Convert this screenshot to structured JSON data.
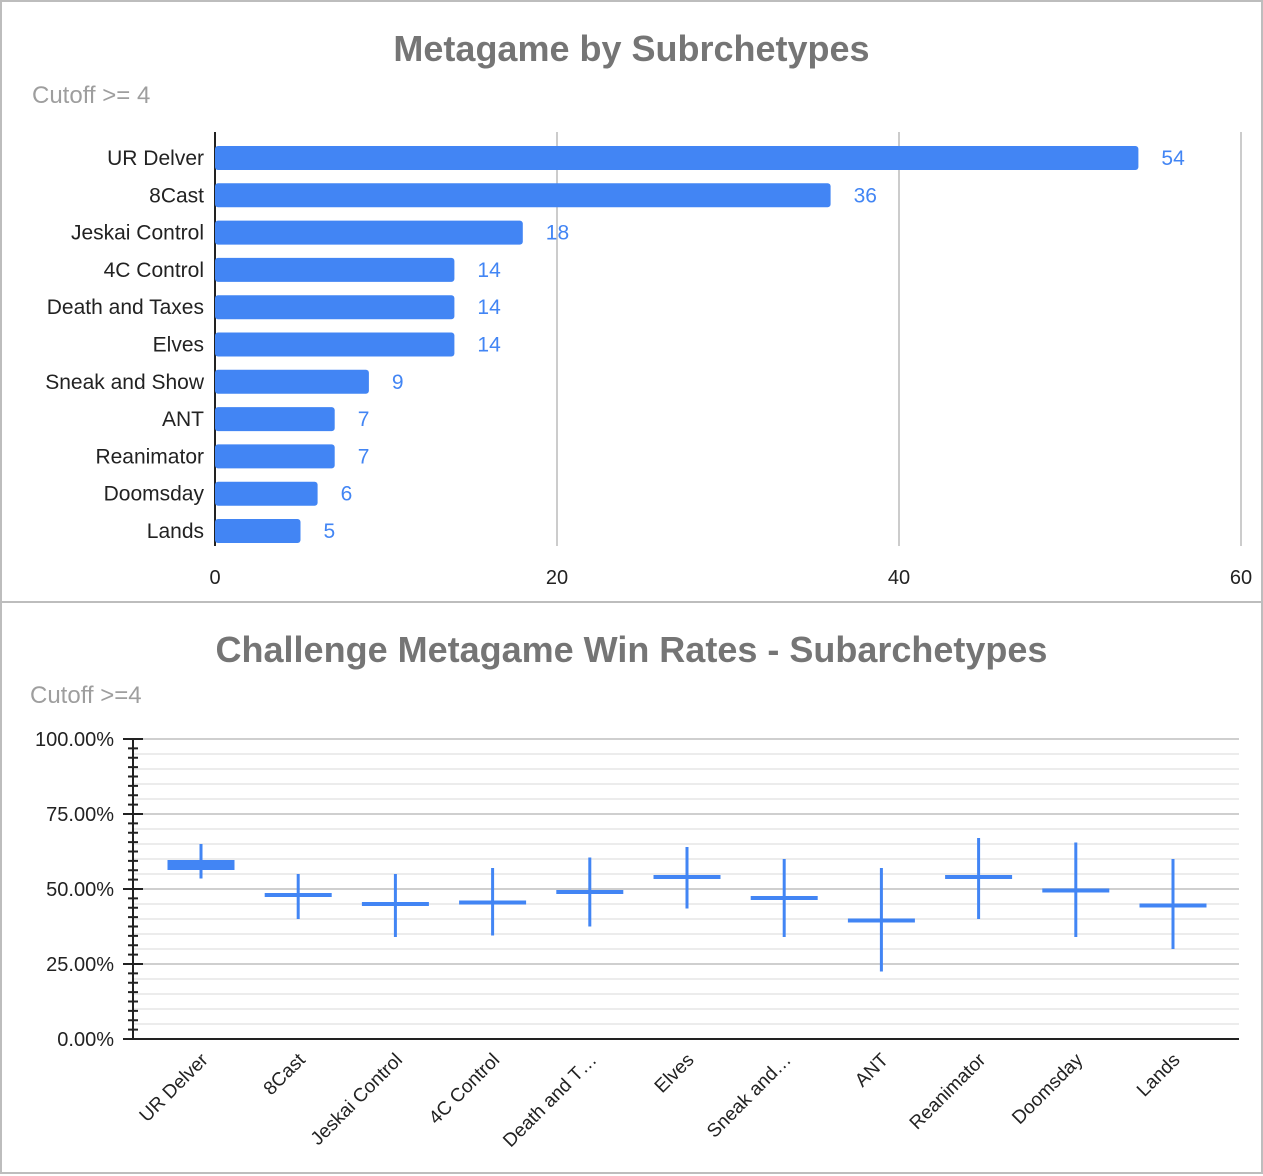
{
  "chart_data": [
    {
      "type": "bar",
      "orientation": "horizontal",
      "title": "Metagame by Subrchetypes",
      "subtitle": "Cutoff >= 4",
      "categories": [
        "UR Delver",
        "8Cast",
        "Jeskai Control",
        "4C Control",
        "Death and Taxes",
        "Elves",
        "Sneak and Show",
        "ANT",
        "Reanimator",
        "Doomsday",
        "Lands"
      ],
      "values": [
        54,
        36,
        18,
        14,
        14,
        14,
        9,
        7,
        7,
        6,
        5
      ],
      "xlim": [
        0,
        60
      ],
      "xticks": [
        "0",
        "20",
        "40",
        "60"
      ],
      "grid": true,
      "data_labels": true,
      "color": "#4285f4"
    },
    {
      "type": "candlestick",
      "title": "Challenge Metagame Win Rates - Subarchetypes",
      "subtitle": "Cutoff >=4",
      "categories": [
        "UR Delver",
        "8Cast",
        "Jeskai Control",
        "4C Control",
        "Death and T…",
        "Elves",
        "Sneak and…",
        "ANT",
        "Reanimator",
        "Doomsday",
        "Lands"
      ],
      "series": [
        {
          "low": [
            53.5,
            40.0,
            34.0,
            34.5,
            37.5,
            43.5,
            34.0,
            22.5,
            40.0,
            34.0,
            30.0
          ],
          "open": [
            56.5,
            47.5,
            44.5,
            45.5,
            49.0,
            54.0,
            47.0,
            38.5,
            54.0,
            49.5,
            44.5
          ],
          "close": [
            59.5,
            48.0,
            45.0,
            45.5,
            49.0,
            54.0,
            47.0,
            39.5,
            54.0,
            49.5,
            44.5
          ],
          "high": [
            65.0,
            55.0,
            55.0,
            57.0,
            60.5,
            64.0,
            60.0,
            57.0,
            67.0,
            65.5,
            60.0
          ]
        }
      ],
      "ylim": [
        0,
        100
      ],
      "yticks": [
        "0.00%",
        "25.00%",
        "50.00%",
        "75.00%",
        "100.00%"
      ],
      "grid": true,
      "color": "#4285f4"
    }
  ]
}
